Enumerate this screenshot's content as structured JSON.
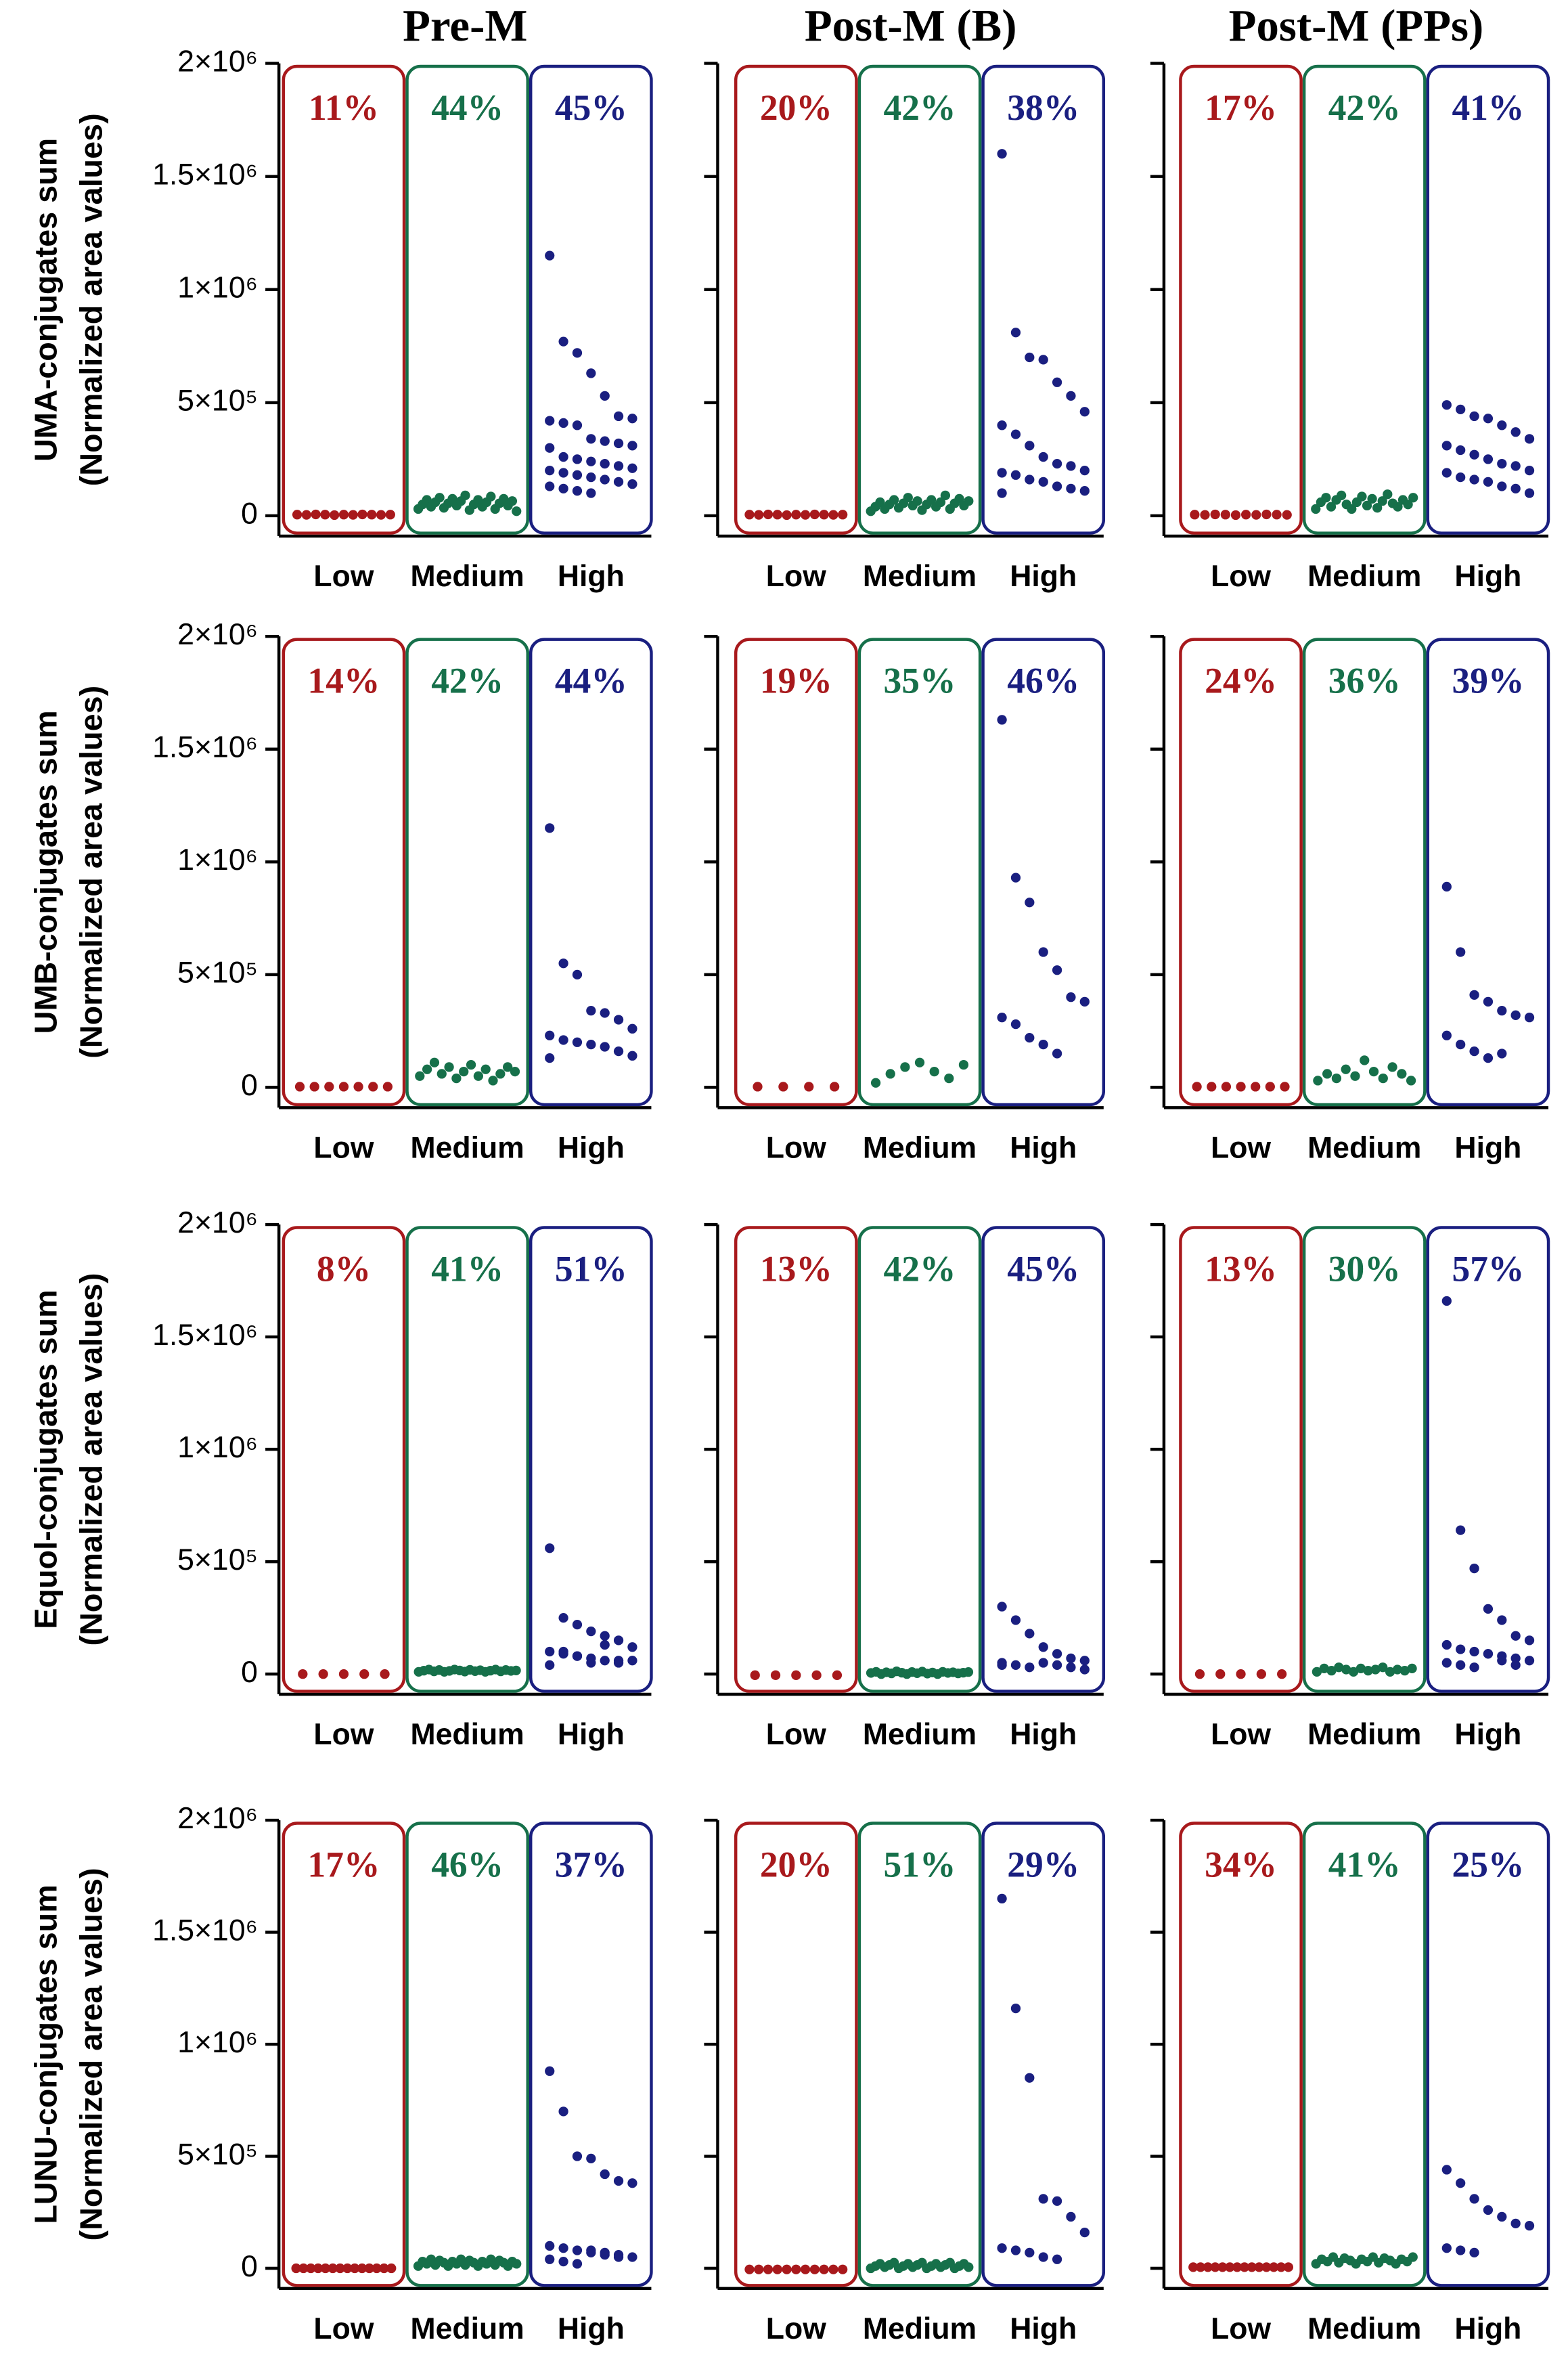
{
  "chart_data": [
    {
      "type": "strip",
      "title": "Pre-M",
      "ylabel": [
        "UMA-conjugates sum",
        "(Normalized area values)"
      ],
      "ylim": [
        -90000,
        2000000
      ],
      "yticks": [
        0,
        {
          "value": 500000,
          "label": "5×10⁵"
        },
        {
          "value": 1000000,
          "label": "1×10⁶"
        },
        {
          "value": 1500000,
          "label": "1.5×10⁶"
        },
        {
          "value": 2000000,
          "label": "2×10⁶"
        }
      ],
      "shares": [
        11,
        44,
        45
      ],
      "share_labels": [
        "11%",
        "44%",
        "45%"
      ],
      "series": [
        {
          "name": "Low",
          "color": "#a8191c",
          "values": [
            5000,
            4000,
            6000,
            5000,
            3000,
            5000,
            4000,
            6000,
            5000,
            4000,
            5000
          ]
        },
        {
          "name": "Medium",
          "color": "#16704a",
          "values": [
            30000,
            50000,
            70000,
            40000,
            60000,
            80000,
            35000,
            55000,
            75000,
            45000,
            65000,
            90000,
            25000,
            50000,
            70000,
            40000,
            60000,
            85000,
            30000,
            55000,
            75000,
            45000,
            65000,
            20000
          ]
        },
        {
          "name": "High",
          "color": "#1a1f80",
          "values": [
            1150000,
            770000,
            720000,
            630000,
            530000,
            440000,
            430000,
            420000,
            410000,
            400000,
            340000,
            330000,
            320000,
            310000,
            300000,
            260000,
            250000,
            240000,
            230000,
            220000,
            210000,
            200000,
            190000,
            180000,
            170000,
            160000,
            150000,
            140000,
            130000,
            120000,
            110000,
            100000
          ]
        }
      ]
    },
    {
      "type": "strip",
      "title": "Post-M (B)",
      "ylim": [
        -90000,
        2000000
      ],
      "yticks": [
        0,
        500000,
        1000000,
        1500000,
        2000000
      ],
      "shares": [
        20,
        42,
        38
      ],
      "share_labels": [
        "20%",
        "42%",
        "38%"
      ],
      "series": [
        {
          "name": "Low",
          "color": "#a8191c",
          "values": [
            5000,
            4000,
            6000,
            5000,
            3000,
            5000,
            4000,
            6000,
            5000,
            4000,
            5000
          ]
        },
        {
          "name": "Medium",
          "color": "#16704a",
          "values": [
            20000,
            40000,
            60000,
            30000,
            50000,
            70000,
            35000,
            55000,
            80000,
            45000,
            65000,
            25000,
            50000,
            70000,
            40000,
            60000,
            90000,
            30000,
            55000,
            75000,
            45000,
            65000
          ]
        },
        {
          "name": "High",
          "color": "#1a1f80",
          "values": [
            1600000,
            810000,
            700000,
            690000,
            590000,
            530000,
            460000,
            400000,
            360000,
            310000,
            260000,
            230000,
            220000,
            200000,
            190000,
            180000,
            160000,
            150000,
            130000,
            120000,
            110000,
            100000
          ]
        }
      ]
    },
    {
      "type": "strip",
      "title": "Post-M (PPs)",
      "ylim": [
        -90000,
        2000000
      ],
      "yticks": [
        0,
        500000,
        1000000,
        1500000,
        2000000
      ],
      "shares": [
        17,
        42,
        41
      ],
      "share_labels": [
        "17%",
        "42%",
        "41%"
      ],
      "series": [
        {
          "name": "Low",
          "color": "#a8191c",
          "values": [
            5000,
            4000,
            6000,
            5000,
            3000,
            5000,
            4000,
            6000,
            5000,
            4000
          ]
        },
        {
          "name": "Medium",
          "color": "#16704a",
          "values": [
            30000,
            60000,
            80000,
            40000,
            70000,
            90000,
            50000,
            30000,
            60000,
            85000,
            45000,
            75000,
            35000,
            65000,
            95000,
            55000,
            40000,
            70000,
            50000,
            80000
          ]
        },
        {
          "name": "High",
          "color": "#1a1f80",
          "values": [
            490000,
            470000,
            440000,
            430000,
            400000,
            370000,
            340000,
            310000,
            290000,
            270000,
            250000,
            230000,
            220000,
            200000,
            190000,
            170000,
            160000,
            150000,
            130000,
            120000,
            100000
          ]
        }
      ]
    },
    {
      "type": "strip",
      "ylabel": [
        "UMB-conjugates sum",
        "(Normalized area values)"
      ],
      "ylim": [
        -90000,
        2000000
      ],
      "yticks": [
        0,
        {
          "value": 500000,
          "label": "5×10⁵"
        },
        {
          "value": 1000000,
          "label": "1×10⁶"
        },
        {
          "value": 1500000,
          "label": "1.5×10⁶"
        },
        {
          "value": 2000000,
          "label": "2×10⁶"
        }
      ],
      "shares": [
        14,
        42,
        44
      ],
      "share_labels": [
        "14%",
        "42%",
        "44%"
      ],
      "series": [
        {
          "name": "Low",
          "color": "#a8191c",
          "values": [
            3000,
            3000,
            3000,
            3000,
            3000,
            3000,
            3000
          ]
        },
        {
          "name": "Medium",
          "color": "#16704a",
          "values": [
            50000,
            80000,
            110000,
            60000,
            90000,
            40000,
            70000,
            100000,
            50000,
            80000,
            30000,
            60000,
            90000,
            70000
          ]
        },
        {
          "name": "High",
          "color": "#1a1f80",
          "values": [
            1150000,
            550000,
            500000,
            340000,
            330000,
            300000,
            260000,
            230000,
            210000,
            200000,
            190000,
            180000,
            160000,
            140000,
            130000
          ]
        }
      ]
    },
    {
      "type": "strip",
      "ylim": [
        -90000,
        2000000
      ],
      "yticks": [
        0,
        500000,
        1000000,
        1500000,
        2000000
      ],
      "shares": [
        19,
        35,
        46
      ],
      "share_labels": [
        "19%",
        "35%",
        "46%"
      ],
      "series": [
        {
          "name": "Low",
          "color": "#a8191c",
          "values": [
            3000,
            3000,
            3000,
            3000
          ]
        },
        {
          "name": "Medium",
          "color": "#16704a",
          "values": [
            20000,
            60000,
            90000,
            110000,
            70000,
            40000,
            100000
          ]
        },
        {
          "name": "High",
          "color": "#1a1f80",
          "values": [
            1630000,
            930000,
            820000,
            600000,
            520000,
            400000,
            380000,
            310000,
            280000,
            220000,
            190000,
            150000
          ]
        }
      ]
    },
    {
      "type": "strip",
      "ylim": [
        -90000,
        2000000
      ],
      "yticks": [
        0,
        500000,
        1000000,
        1500000,
        2000000
      ],
      "shares": [
        24,
        36,
        39
      ],
      "share_labels": [
        "24%",
        "36%",
        "39%"
      ],
      "series": [
        {
          "name": "Low",
          "color": "#a8191c",
          "values": [
            3000,
            3000,
            3000,
            3000,
            3000,
            3000,
            3000
          ]
        },
        {
          "name": "Medium",
          "color": "#16704a",
          "values": [
            30000,
            60000,
            40000,
            80000,
            50000,
            120000,
            70000,
            40000,
            90000,
            60000,
            30000
          ]
        },
        {
          "name": "High",
          "color": "#1a1f80",
          "values": [
            890000,
            600000,
            410000,
            380000,
            340000,
            320000,
            310000,
            230000,
            190000,
            160000,
            130000,
            150000
          ]
        }
      ]
    },
    {
      "type": "strip",
      "ylabel": [
        "Equol-conjugates sum",
        "(Normalized area values)"
      ],
      "ylim": [
        -90000,
        2000000
      ],
      "yticks": [
        0,
        {
          "value": 500000,
          "label": "5×10⁵"
        },
        {
          "value": 1000000,
          "label": "1×10⁶"
        },
        {
          "value": 1500000,
          "label": "1.5×10⁶"
        },
        {
          "value": 2000000,
          "label": "2×10⁶"
        }
      ],
      "shares": [
        8,
        41,
        51
      ],
      "share_labels": [
        "8%",
        "41%",
        "51%"
      ],
      "series": [
        {
          "name": "Low",
          "color": "#a8191c",
          "values": [
            0,
            0,
            0,
            0,
            0
          ]
        },
        {
          "name": "Medium",
          "color": "#16704a",
          "values": [
            10000,
            15000,
            20000,
            12000,
            18000,
            10000,
            14000,
            20000,
            16000,
            11000,
            19000,
            13000,
            17000,
            10000,
            15000,
            20000,
            12000,
            18000,
            14000,
            16000
          ]
        },
        {
          "name": "High",
          "color": "#1a1f80",
          "values": [
            560000,
            250000,
            220000,
            190000,
            170000,
            150000,
            120000,
            100000,
            90000,
            80000,
            70000,
            60000,
            50000,
            60000,
            40000,
            100000,
            80000,
            50000,
            130000,
            60000
          ]
        }
      ]
    },
    {
      "type": "strip",
      "ylim": [
        -90000,
        2000000
      ],
      "yticks": [
        0,
        500000,
        1000000,
        1500000,
        2000000
      ],
      "shares": [
        13,
        42,
        45
      ],
      "share_labels": [
        "13%",
        "42%",
        "45%"
      ],
      "series": [
        {
          "name": "Low",
          "color": "#a8191c",
          "values": [
            -5000,
            -5000,
            -5000,
            -5000,
            -5000
          ]
        },
        {
          "name": "Medium",
          "color": "#16704a",
          "values": [
            5000,
            10000,
            0,
            8000,
            3000,
            12000,
            6000,
            0,
            9000,
            4000,
            11000,
            2000,
            7000,
            0,
            10000,
            5000,
            8000,
            3000,
            6000,
            9000
          ]
        },
        {
          "name": "High",
          "color": "#1a1f80",
          "values": [
            300000,
            240000,
            180000,
            120000,
            90000,
            70000,
            60000,
            50000,
            40000,
            30000,
            50000,
            40000,
            30000,
            20000,
            40000
          ]
        }
      ]
    },
    {
      "type": "strip",
      "ylim": [
        -90000,
        2000000
      ],
      "yticks": [
        0,
        500000,
        1000000,
        1500000,
        2000000
      ],
      "shares": [
        13,
        30,
        57
      ],
      "share_labels": [
        "13%",
        "30%",
        "57%"
      ],
      "series": [
        {
          "name": "Low",
          "color": "#a8191c",
          "values": [
            0,
            0,
            0,
            0,
            0
          ]
        },
        {
          "name": "Medium",
          "color": "#16704a",
          "values": [
            10000,
            25000,
            15000,
            30000,
            20000,
            10000,
            25000,
            15000,
            20000,
            30000,
            10000,
            20000,
            15000,
            25000
          ]
        },
        {
          "name": "High",
          "color": "#1a1f80",
          "values": [
            1660000,
            640000,
            470000,
            290000,
            240000,
            170000,
            150000,
            130000,
            110000,
            100000,
            90000,
            80000,
            70000,
            60000,
            50000,
            40000,
            30000,
            90000,
            60000,
            40000
          ]
        }
      ]
    },
    {
      "type": "strip",
      "ylabel": [
        "LUNU-conjugates sum",
        "(Normalized area values)"
      ],
      "ylim": [
        -90000,
        2000000
      ],
      "yticks": [
        0,
        {
          "value": 500000,
          "label": "5×10⁵"
        },
        {
          "value": 1000000,
          "label": "1×10⁶"
        },
        {
          "value": 1500000,
          "label": "1.5×10⁶"
        },
        {
          "value": 2000000,
          "label": "2×10⁶"
        }
      ],
      "shares": [
        17,
        46,
        37
      ],
      "share_labels": [
        "17%",
        "46%",
        "37%"
      ],
      "series": [
        {
          "name": "Low",
          "color": "#a8191c",
          "values": [
            0,
            0,
            0,
            0,
            0,
            0,
            0,
            0,
            0,
            0,
            0,
            0,
            0,
            0
          ]
        },
        {
          "name": "Medium",
          "color": "#16704a",
          "values": [
            10000,
            30000,
            20000,
            40000,
            15000,
            35000,
            25000,
            10000,
            30000,
            20000,
            40000,
            15000,
            35000,
            25000,
            10000,
            30000,
            20000,
            40000,
            15000,
            35000,
            25000,
            10000,
            30000,
            20000
          ]
        },
        {
          "name": "High",
          "color": "#1a1f80",
          "values": [
            880000,
            700000,
            500000,
            490000,
            420000,
            390000,
            380000,
            100000,
            90000,
            80000,
            70000,
            60000,
            60000,
            50000,
            40000,
            30000,
            20000,
            80000,
            70000,
            50000
          ]
        }
      ]
    },
    {
      "type": "strip",
      "ylim": [
        -90000,
        2000000
      ],
      "yticks": [
        0,
        500000,
        1000000,
        1500000,
        2000000
      ],
      "shares": [
        20,
        51,
        29
      ],
      "share_labels": [
        "20%",
        "51%",
        "29%"
      ],
      "series": [
        {
          "name": "Low",
          "color": "#a8191c",
          "values": [
            -5000,
            -5000,
            -5000,
            -5000,
            -5000,
            -5000,
            -5000,
            -5000,
            -5000,
            -5000,
            -5000
          ]
        },
        {
          "name": "Medium",
          "color": "#16704a",
          "values": [
            0,
            10000,
            20000,
            5000,
            15000,
            25000,
            0,
            10000,
            20000,
            5000,
            15000,
            25000,
            0,
            10000,
            20000,
            5000,
            15000,
            25000,
            0,
            10000,
            20000,
            5000
          ]
        },
        {
          "name": "High",
          "color": "#1a1f80",
          "values": [
            1650000,
            1160000,
            850000,
            310000,
            300000,
            230000,
            160000,
            90000,
            80000,
            70000,
            50000,
            40000
          ]
        }
      ]
    },
    {
      "type": "strip",
      "ylim": [
        -90000,
        2000000
      ],
      "yticks": [
        0,
        500000,
        1000000,
        1500000,
        2000000
      ],
      "shares": [
        34,
        41,
        25
      ],
      "share_labels": [
        "34%",
        "41%",
        "25%"
      ],
      "series": [
        {
          "name": "Low",
          "color": "#a8191c",
          "values": [
            5000,
            5000,
            5000,
            5000,
            5000,
            5000,
            5000,
            5000,
            5000,
            5000,
            5000,
            5000,
            5000,
            5000
          ]
        },
        {
          "name": "Medium",
          "color": "#16704a",
          "values": [
            20000,
            40000,
            30000,
            50000,
            25000,
            45000,
            35000,
            20000,
            40000,
            30000,
            50000,
            25000,
            45000,
            35000,
            20000,
            40000,
            30000,
            50000
          ]
        },
        {
          "name": "High",
          "color": "#1a1f80",
          "values": [
            440000,
            380000,
            310000,
            260000,
            230000,
            200000,
            190000,
            90000,
            80000,
            70000
          ]
        }
      ]
    }
  ]
}
